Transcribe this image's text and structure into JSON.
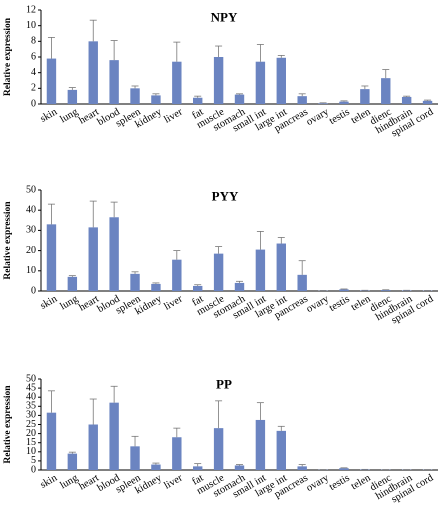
{
  "chart_data": [
    {
      "type": "bar",
      "title": "NPY",
      "ylabel": "Relative expression",
      "xlabel": "",
      "ylim": [
        0,
        12
      ],
      "yticks": [
        0,
        2,
        4,
        6,
        8,
        10,
        12
      ],
      "categories": [
        "skin",
        "lung",
        "heart",
        "blood",
        "spleen",
        "kidney",
        "liver",
        "fat",
        "muscle",
        "stomach",
        "small int",
        "large int",
        "pancreas",
        "ovary",
        "testis",
        "telen",
        "dienc",
        "hindbrain",
        "spinal cord"
      ],
      "values": [
        5.8,
        1.8,
        8.0,
        5.6,
        2.0,
        1.1,
        5.4,
        0.8,
        6.0,
        1.2,
        5.4,
        5.9,
        1.0,
        0.1,
        0.3,
        1.9,
        3.3,
        0.9,
        0.4
      ],
      "errors": [
        2.7,
        0.3,
        2.7,
        2.5,
        0.3,
        0.2,
        2.5,
        0.2,
        1.4,
        0.1,
        2.2,
        0.3,
        0.3,
        0.05,
        0.1,
        0.4,
        1.1,
        0.1,
        0.1
      ],
      "bar_color": "#6b84c1",
      "grid": false
    },
    {
      "type": "bar",
      "title": "PYY",
      "ylabel": "Relative expression",
      "xlabel": "",
      "ylim": [
        0,
        50
      ],
      "yticks": [
        0,
        10,
        20,
        30,
        40,
        50
      ],
      "categories": [
        "skin",
        "lung",
        "heart",
        "blood",
        "spleen",
        "kidney",
        "liver",
        "fat",
        "muscle",
        "stomach",
        "small int",
        "large int",
        "pancreas",
        "ovary",
        "testis",
        "telen",
        "dienc",
        "hindbrain",
        "spinal cord"
      ],
      "values": [
        33.0,
        7.0,
        31.5,
        36.5,
        8.5,
        3.5,
        15.5,
        2.5,
        18.5,
        4.0,
        20.5,
        23.5,
        8.0,
        0.2,
        0.8,
        0.3,
        0.5,
        0.3,
        0.2
      ],
      "errors": [
        10.0,
        0.6,
        13.0,
        7.5,
        1.0,
        0.5,
        4.5,
        0.6,
        3.5,
        0.8,
        9.0,
        3.0,
        7.0,
        0.05,
        0.2,
        0.05,
        0.1,
        0.05,
        0.05
      ],
      "bar_color": "#6b84c1",
      "grid": false
    },
    {
      "type": "bar",
      "title": "PP",
      "ylabel": "Relative expression",
      "xlabel": "",
      "ylim": [
        0,
        50
      ],
      "yticks": [
        0,
        5,
        10,
        15,
        20,
        25,
        30,
        35,
        40,
        45,
        50
      ],
      "categories": [
        "skin",
        "lung",
        "heart",
        "blood",
        "spleen",
        "kidney",
        "liver",
        "fat",
        "muscle",
        "stomach",
        "small int",
        "large int",
        "pancreas",
        "ovary",
        "testis",
        "telen",
        "dienc",
        "hindbrain",
        "spinal cord"
      ],
      "values": [
        31.5,
        9.0,
        25.0,
        37.0,
        13.0,
        3.0,
        18.0,
        2.0,
        23.0,
        2.5,
        27.5,
        21.5,
        2.0,
        0.2,
        1.0,
        0.3,
        0.2,
        0.2,
        0.2
      ],
      "errors": [
        12.0,
        0.8,
        14.0,
        9.0,
        5.5,
        0.8,
        5.0,
        1.5,
        15.0,
        0.5,
        9.5,
        2.5,
        1.0,
        0.05,
        0.2,
        0.05,
        0.05,
        0.05,
        0.05
      ],
      "bar_color": "#6b84c1",
      "grid": false
    }
  ]
}
